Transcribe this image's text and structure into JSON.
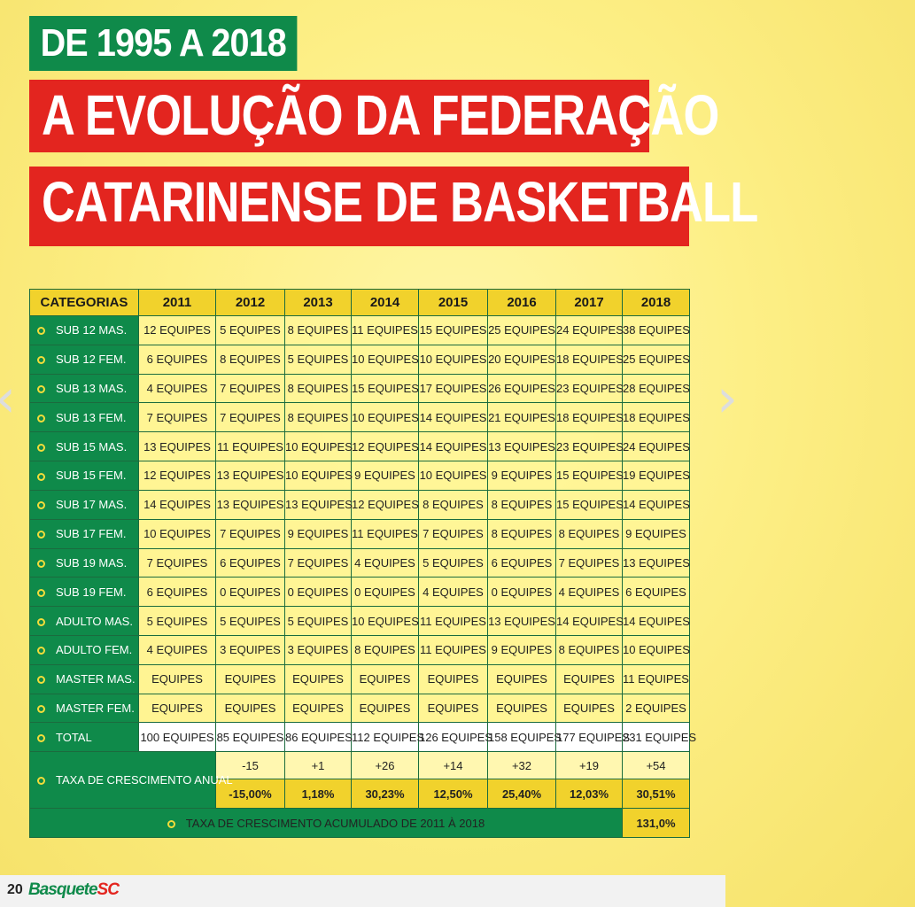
{
  "header": {
    "tag": "DE 1995 A 2018",
    "title_line1": "A EVOLUÇÃO DA FEDERAÇÃO",
    "title_line2": "CATARINENSE DE BASKETBALL"
  },
  "nav": {
    "prev": "‹",
    "next": "›"
  },
  "table": {
    "corner": "CATEGORIAS",
    "years": [
      "2011",
      "2012",
      "2013",
      "2014",
      "2015",
      "2016",
      "2017",
      "2018"
    ],
    "rows": [
      {
        "label": "SUB 12 MAS.",
        "values": [
          "12 EQUIPES",
          "5 EQUIPES",
          "8 EQUIPES",
          "11 EQUIPES",
          "15 EQUIPES",
          "25 EQUIPES",
          "24 EQUIPES",
          "38 EQUIPES"
        ]
      },
      {
        "label": "SUB 12 FEM.",
        "values": [
          "6 EQUIPES",
          "8 EQUIPES",
          "5 EQUIPES",
          "10 EQUIPES",
          "10 EQUIPES",
          "20 EQUIPES",
          "18 EQUIPES",
          "25 EQUIPES"
        ]
      },
      {
        "label": "SUB 13 MAS.",
        "values": [
          "4 EQUIPES",
          "7 EQUIPES",
          "8 EQUIPES",
          "15 EQUIPES",
          "17 EQUIPES",
          "26 EQUIPES",
          "23 EQUIPES",
          "28 EQUIPES"
        ]
      },
      {
        "label": "SUB 13 FEM.",
        "values": [
          "7 EQUIPES",
          "7 EQUIPES",
          "8 EQUIPES",
          "10 EQUIPES",
          "14 EQUIPES",
          "21 EQUIPES",
          "18 EQUIPES",
          "18 EQUIPES"
        ]
      },
      {
        "label": "SUB 15 MAS.",
        "values": [
          "13 EQUIPES",
          "11 EQUIPES",
          "10 EQUIPES",
          "12 EQUIPES",
          "14 EQUIPES",
          "13 EQUIPES",
          "23 EQUIPES",
          "24 EQUIPES"
        ]
      },
      {
        "label": "SUB 15 FEM.",
        "values": [
          "12 EQUIPES",
          "13 EQUIPES",
          "10 EQUIPES",
          "9 EQUIPES",
          "10 EQUIPES",
          "9 EQUIPES",
          "15 EQUIPES",
          "19 EQUIPES"
        ]
      },
      {
        "label": "SUB 17 MAS.",
        "values": [
          "14 EQUIPES",
          "13 EQUIPES",
          "13 EQUIPES",
          "12 EQUIPES",
          "8 EQUIPES",
          "8 EQUIPES",
          "15 EQUIPES",
          "14 EQUIPES"
        ]
      },
      {
        "label": "SUB 17 FEM.",
        "values": [
          "10 EQUIPES",
          "7 EQUIPES",
          "9 EQUIPES",
          "11 EQUIPES",
          "7 EQUIPES",
          "8 EQUIPES",
          "8 EQUIPES",
          "9 EQUIPES"
        ]
      },
      {
        "label": "SUB 19 MAS.",
        "values": [
          "7 EQUIPES",
          "6 EQUIPES",
          "7 EQUIPES",
          "4 EQUIPES",
          "5 EQUIPES",
          "6 EQUIPES",
          "7 EQUIPES",
          "13 EQUIPES"
        ]
      },
      {
        "label": "SUB 19 FEM.",
        "values": [
          "6 EQUIPES",
          "0 EQUIPES",
          "0 EQUIPES",
          "0 EQUIPES",
          "4 EQUIPES",
          "0 EQUIPES",
          "4 EQUIPES",
          "6 EQUIPES"
        ]
      },
      {
        "label": "ADULTO MAS.",
        "values": [
          "5 EQUIPES",
          "5 EQUIPES",
          "5 EQUIPES",
          "10 EQUIPES",
          "11 EQUIPES",
          "13 EQUIPES",
          "14 EQUIPES",
          "14 EQUIPES"
        ]
      },
      {
        "label": "ADULTO FEM.",
        "values": [
          "4 EQUIPES",
          "3 EQUIPES",
          "3 EQUIPES",
          "8 EQUIPES",
          "11 EQUIPES",
          "9 EQUIPES",
          "8 EQUIPES",
          "10 EQUIPES"
        ]
      },
      {
        "label": "MASTER MAS.",
        "values": [
          "EQUIPES",
          "EQUIPES",
          "EQUIPES",
          "EQUIPES",
          "EQUIPES",
          "EQUIPES",
          "EQUIPES",
          "11 EQUIPES"
        ]
      },
      {
        "label": "MASTER FEM.",
        "values": [
          "EQUIPES",
          "EQUIPES",
          "EQUIPES",
          "EQUIPES",
          "EQUIPES",
          "EQUIPES",
          "EQUIPES",
          "2 EQUIPES"
        ]
      }
    ],
    "total": {
      "label": "TOTAL",
      "values": [
        "100 EQUIPES",
        "85 EQUIPES",
        "86 EQUIPES",
        "112 EQUIPES",
        "126 EQUIPES",
        "158 EQUIPES",
        "177 EQUIPES",
        "231 EQUIPES"
      ]
    },
    "growth": {
      "label": "TAXA DE CRESCIMENTO ANUAL",
      "diffs": [
        "-15",
        "+1",
        "+26",
        "+14",
        "+32",
        "+19",
        "+54"
      ],
      "percents": [
        "-15,00%",
        "1,18%",
        "30,23%",
        "12,50%",
        "25,40%",
        "12,03%",
        "30,51%"
      ]
    },
    "cumulative": {
      "label": "TAXA DE CRESCIMENTO ACUMULADO DE 2011 À 2018",
      "value": "131,0%"
    }
  },
  "footer": {
    "page_number": "20",
    "logo_main": "Basquete",
    "logo_accent": "SC"
  }
}
